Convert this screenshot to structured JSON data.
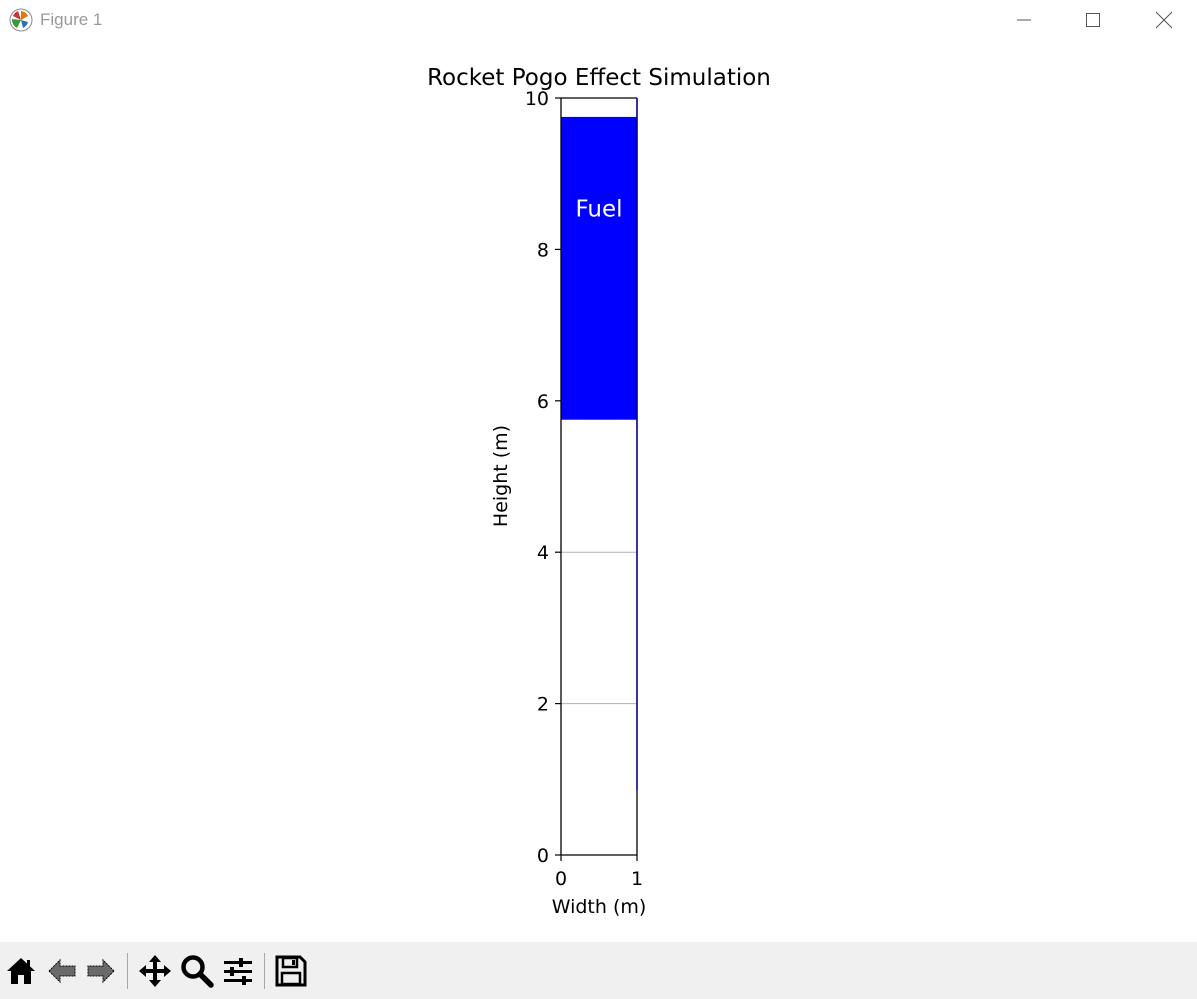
{
  "window": {
    "title": "Figure 1"
  },
  "toolbar": {
    "buttons": [
      {
        "name": "home",
        "icon": "home-icon"
      },
      {
        "name": "back",
        "icon": "back-arrow-icon"
      },
      {
        "name": "forward",
        "icon": "forward-arrow-icon"
      },
      {
        "name": "pan",
        "icon": "move-icon"
      },
      {
        "name": "zoom",
        "icon": "magnifier-icon"
      },
      {
        "name": "configure-subplots",
        "icon": "sliders-icon"
      },
      {
        "name": "save",
        "icon": "floppy-disk-icon"
      }
    ]
  },
  "chart_data": {
    "type": "bar",
    "title": "Rocket Pogo Effect Simulation",
    "xlabel": "Width (m)",
    "ylabel": "Height (m)",
    "xlim": [
      0,
      1
    ],
    "ylim": [
      0,
      10
    ],
    "xticks": [
      "0",
      "1"
    ],
    "yticks": [
      "0",
      "2",
      "4",
      "6",
      "8",
      "10"
    ],
    "grid": true,
    "fuel_region": {
      "label": "Fuel",
      "bottom": 5.75,
      "top": 9.75,
      "color": "#0000ff"
    },
    "tank_outline": {
      "right_edge_bottom": 0.85,
      "color": "#00008b"
    }
  }
}
